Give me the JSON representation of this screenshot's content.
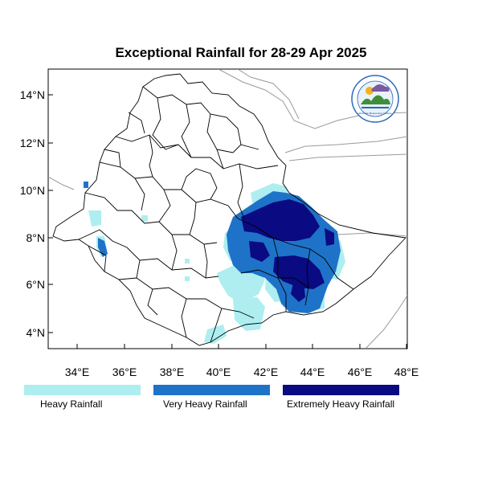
{
  "title": "Exceptional Rainfall for 28-29 Apr 2025",
  "axes": {
    "x_ticks": [
      "34°E",
      "36°E",
      "38°E",
      "40°E",
      "42°E",
      "44°E",
      "46°E",
      "48°E"
    ],
    "y_ticks": [
      "4°N",
      "6°N",
      "8°N",
      "10°N",
      "12°N",
      "14°N"
    ]
  },
  "logo": {
    "text": "Ethiopian Meteorology Institute"
  },
  "legend": [
    {
      "label": "Heavy Rainfall",
      "color": "#aeeef0"
    },
    {
      "label": "Very Heavy Rainfall",
      "color": "#1e73c8"
    },
    {
      "label": "Extremely Heavy Rainfall",
      "color": "#0a0a82"
    }
  ]
}
